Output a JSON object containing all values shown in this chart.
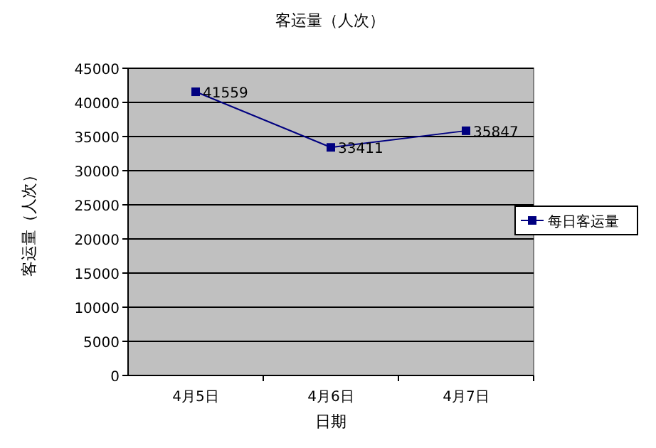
{
  "chart_data": {
    "type": "line",
    "title": "客运量（人次）",
    "xlabel": "日期",
    "ylabel": "客运量（人次）",
    "categories": [
      "4月5日",
      "4月6日",
      "4月7日"
    ],
    "series": [
      {
        "name": "每日客运量",
        "color": "#000080",
        "values": [
          41559,
          33411,
          35847
        ]
      }
    ],
    "ylim": [
      0,
      45000
    ],
    "yticks": [
      0,
      5000,
      10000,
      15000,
      20000,
      25000,
      30000,
      35000,
      40000,
      45000
    ],
    "grid": "y",
    "legend": "right",
    "marker": "square",
    "data_labels": true
  }
}
